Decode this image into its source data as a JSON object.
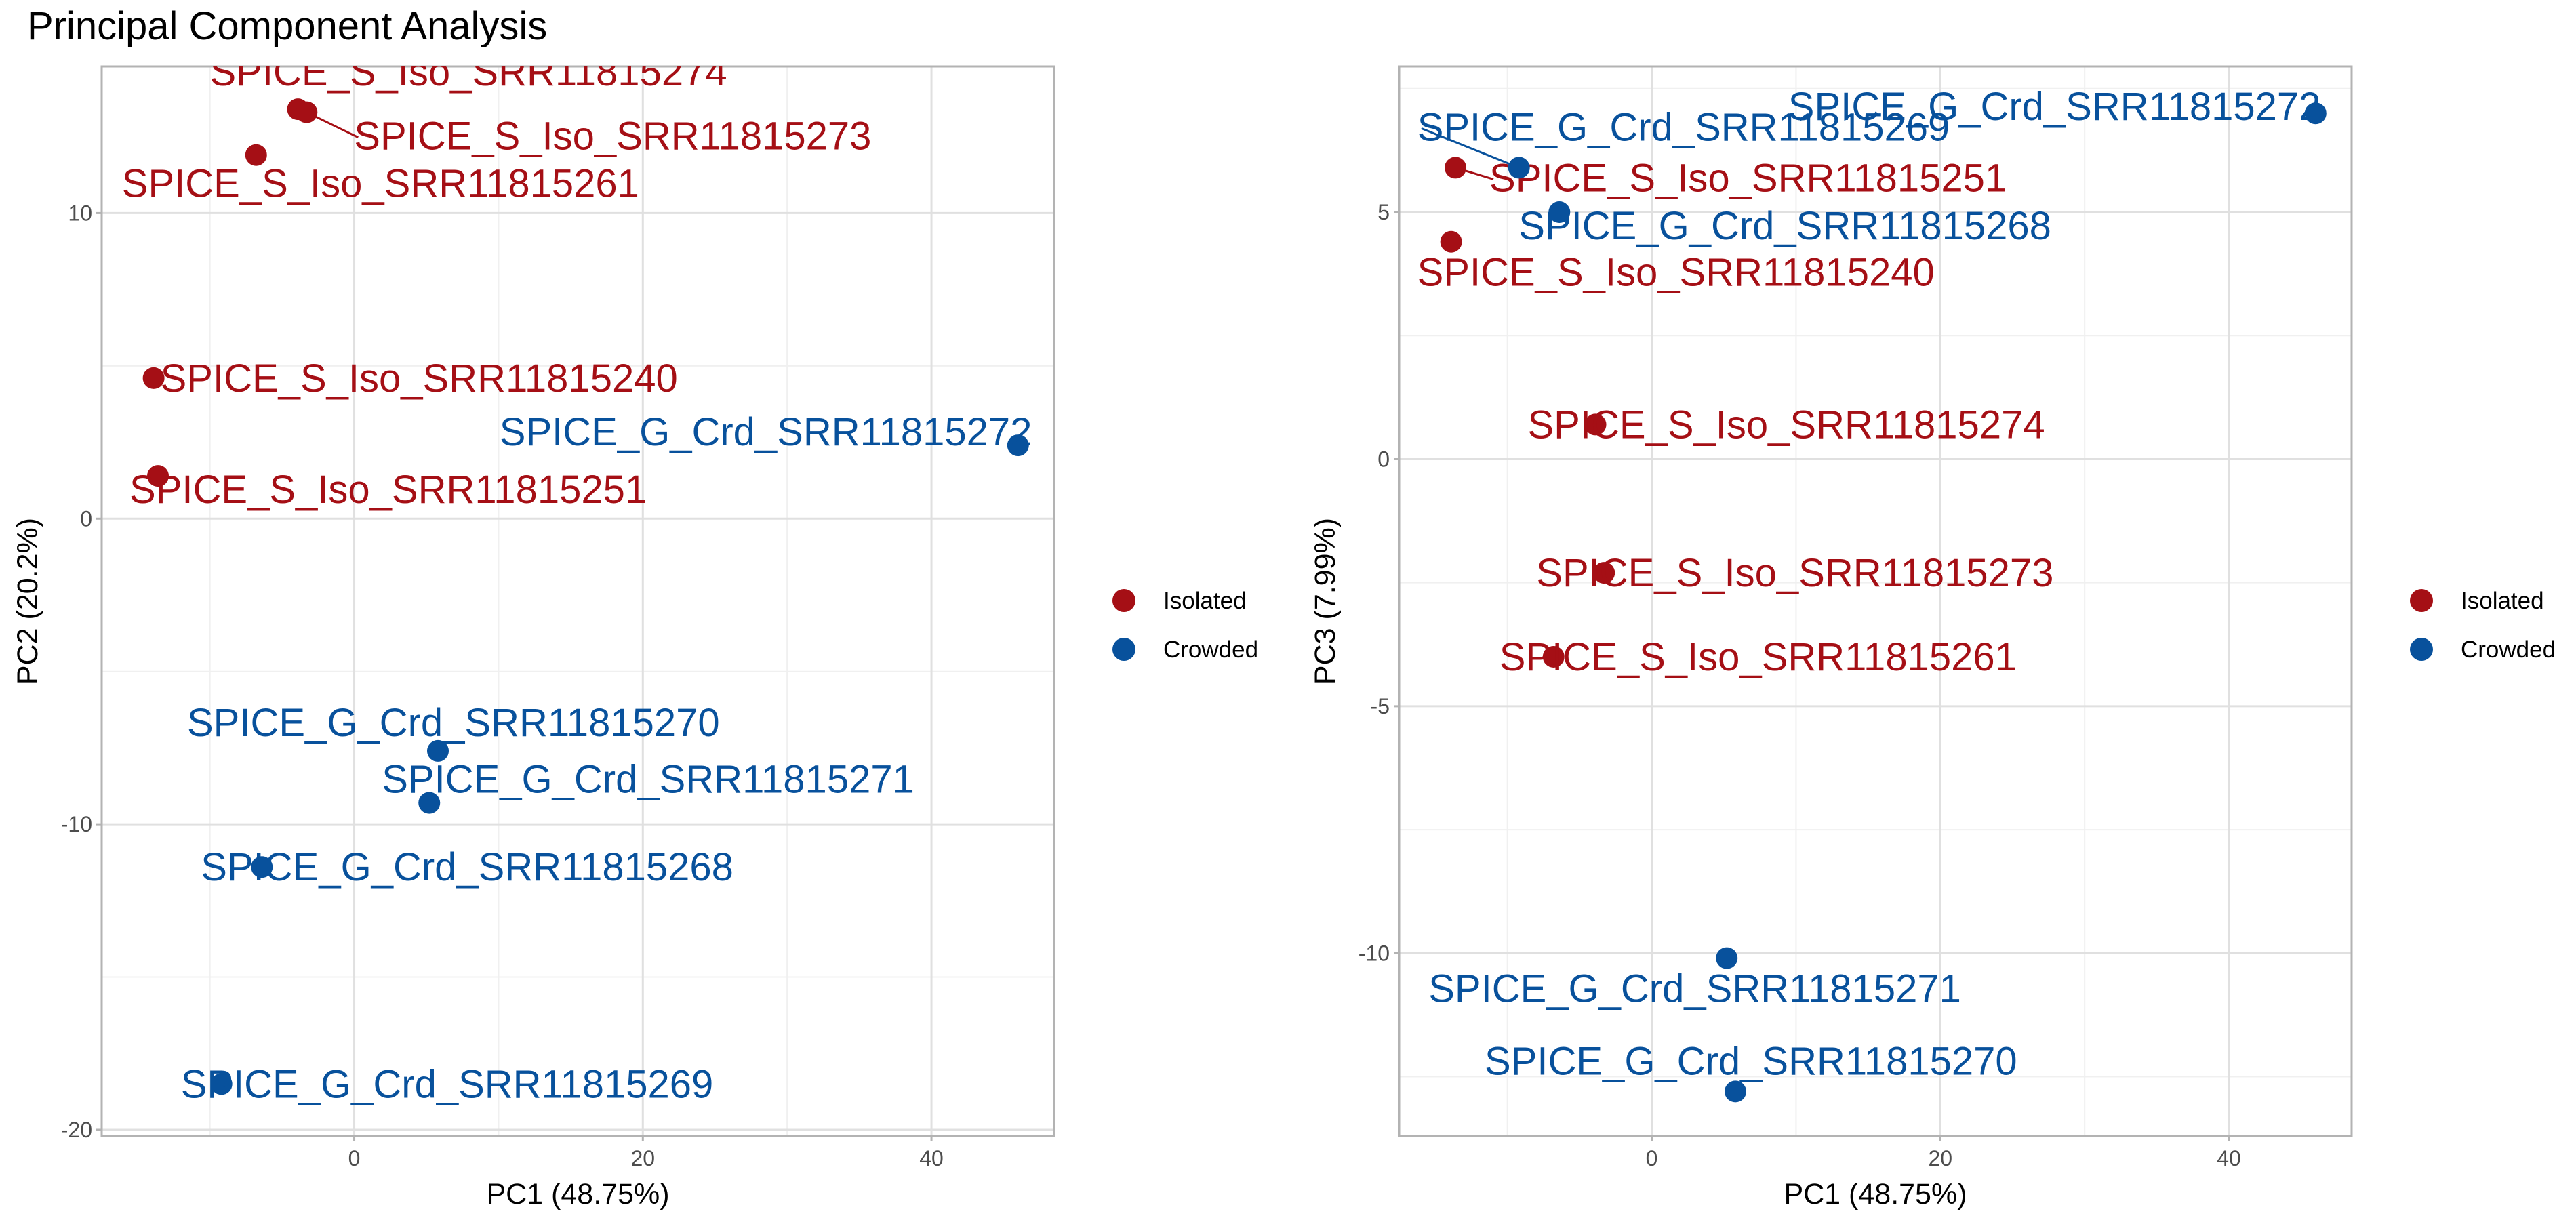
{
  "page_title": "Principal Component Analysis",
  "colors": {
    "Isolated": "#A50F15",
    "Crowded": "#08519C"
  },
  "legend": [
    {
      "name": "Isolated",
      "color": "#A50F15"
    },
    {
      "name": "Crowded",
      "color": "#08519C"
    }
  ],
  "chart_data": [
    {
      "type": "scatter",
      "title": "",
      "xlabel": "PC1 (48.75%)",
      "ylabel": "PC2 (20.2%)",
      "xlim": [
        -17.5,
        48.5
      ],
      "ylim": [
        -20.2,
        14.8
      ],
      "xticks": [
        0,
        20,
        40
      ],
      "yticks": [
        -20,
        -10,
        0,
        10
      ],
      "grid": true,
      "legend_position": "right",
      "series": [
        {
          "name": "Isolated",
          "color": "#A50F15",
          "points": [
            {
              "label": "SPICE_S_Iso_SRR11815274",
              "x": -3.9,
              "y": 13.4
            },
            {
              "label": "SPICE_S_Iso_SRR11815273",
              "x": -3.3,
              "y": 13.3
            },
            {
              "label": "SPICE_S_Iso_SRR11815261",
              "x": -6.8,
              "y": 11.9
            },
            {
              "label": "SPICE_S_Iso_SRR11815240",
              "x": -13.9,
              "y": 4.6
            },
            {
              "label": "SPICE_S_Iso_SRR11815251",
              "x": -13.6,
              "y": 1.4
            }
          ]
        },
        {
          "name": "Crowded",
          "color": "#08519C",
          "points": [
            {
              "label": "SPICE_G_Crd_SRR11815272",
              "x": 46.0,
              "y": 2.4
            },
            {
              "label": "SPICE_G_Crd_SRR11815270",
              "x": 5.8,
              "y": -7.6
            },
            {
              "label": "SPICE_G_Crd_SRR11815271",
              "x": 5.2,
              "y": -9.3
            },
            {
              "label": "SPICE_G_Crd_SRR11815268",
              "x": -6.4,
              "y": -11.4
            },
            {
              "label": "SPICE_G_Crd_SRR11815269",
              "x": -9.2,
              "y": -18.5
            }
          ]
        }
      ]
    },
    {
      "type": "scatter",
      "title": "",
      "xlabel": "PC1 (48.75%)",
      "ylabel": "PC3 (7.99%)",
      "xlim": [
        -17.5,
        48.5
      ],
      "ylim": [
        -13.7,
        7.95
      ],
      "xticks": [
        0,
        20,
        40
      ],
      "yticks": [
        -10,
        -5,
        0,
        5
      ],
      "grid": true,
      "legend_position": "right",
      "series": [
        {
          "name": "Isolated",
          "color": "#A50F15",
          "points": [
            {
              "label": "SPICE_S_Iso_SRR11815251",
              "x": -13.6,
              "y": 5.9
            },
            {
              "label": "SPICE_S_Iso_SRR11815240",
              "x": -13.9,
              "y": 4.4
            },
            {
              "label": "SPICE_S_Iso_SRR11815274",
              "x": -3.9,
              "y": 0.7
            },
            {
              "label": "SPICE_S_Iso_SRR11815273",
              "x": -3.3,
              "y": -2.3
            },
            {
              "label": "SPICE_S_Iso_SRR11815261",
              "x": -6.8,
              "y": -4.0
            }
          ]
        },
        {
          "name": "Crowded",
          "color": "#08519C",
          "points": [
            {
              "label": "SPICE_G_Crd_SRR11815272",
              "x": 46.0,
              "y": 7.0
            },
            {
              "label": "SPICE_G_Crd_SRR11815269",
              "x": -9.2,
              "y": 5.9
            },
            {
              "label": "SPICE_G_Crd_SRR11815268",
              "x": -6.4,
              "y": 5.0
            },
            {
              "label": "SPICE_G_Crd_SRR11815271",
              "x": 5.2,
              "y": -10.1
            },
            {
              "label": "SPICE_G_Crd_SRR11815270",
              "x": 5.8,
              "y": -12.8
            }
          ]
        }
      ]
    }
  ]
}
